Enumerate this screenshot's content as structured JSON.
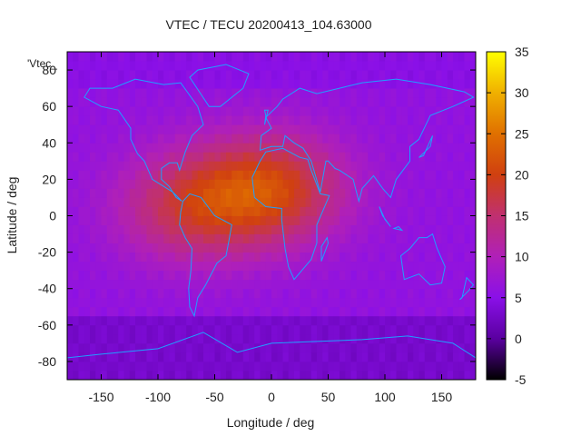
{
  "chart_data": {
    "type": "heatmap",
    "title": "VTEC / TECU 20200413_104.63000",
    "xlabel": "Longitude / deg",
    "ylabel": "Latitude / deg",
    "key_label": "'Vtec_",
    "xlim": [
      -180,
      180
    ],
    "ylim": [
      -90,
      90
    ],
    "xticks": [
      -150,
      -100,
      -50,
      0,
      50,
      100,
      150
    ],
    "yticks": [
      -80,
      -60,
      -40,
      -20,
      0,
      20,
      40,
      60,
      80
    ],
    "colorbar": {
      "range": [
        -5,
        35
      ],
      "ticks": [
        -5,
        0,
        5,
        10,
        15,
        20,
        25,
        30,
        35
      ],
      "palette": [
        "#000000",
        "#5a00a0",
        "#8a10e8",
        "#b020b8",
        "#c03070",
        "#d04010",
        "#e07000",
        "#f0b000",
        "#ffff00"
      ]
    },
    "anomaly_centers": [
      {
        "lon": 0,
        "lat": 15,
        "peak": 24
      },
      {
        "lon": -70,
        "lat": 5,
        "peak": 20
      }
    ],
    "background_vtec": 6,
    "grid": false,
    "coastlines_color": "#1fa0ff"
  }
}
